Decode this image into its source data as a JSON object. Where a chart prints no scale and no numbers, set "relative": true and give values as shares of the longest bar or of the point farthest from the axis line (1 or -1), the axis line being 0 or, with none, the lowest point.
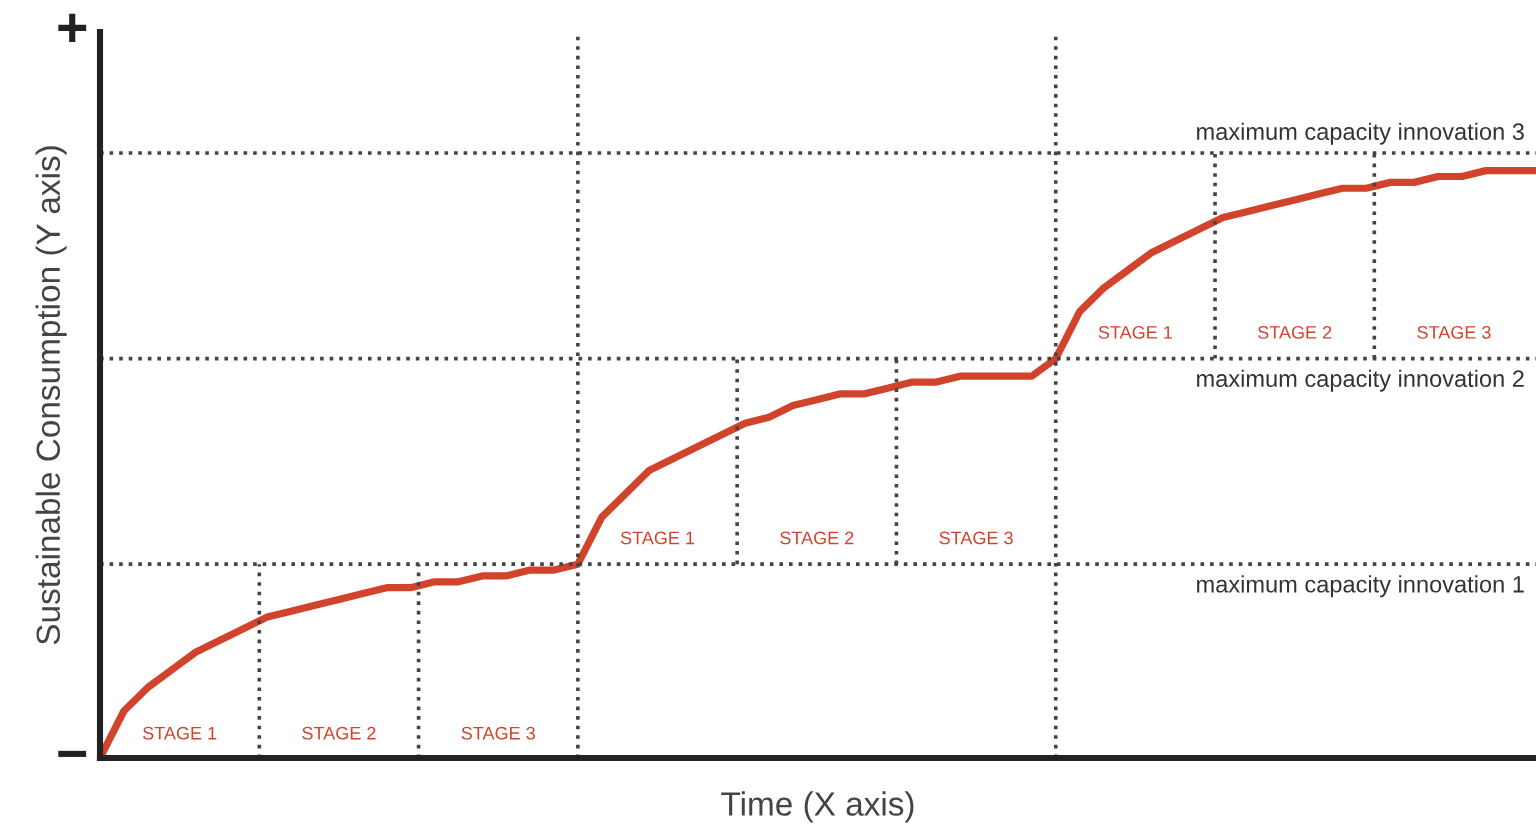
{
  "chart_data": {
    "type": "line",
    "relative": true,
    "xlabel": "Time (X axis)",
    "ylabel": "Sustainable Consumption (Y axis)",
    "categories": [
      null,
      null,
      null,
      null,
      null,
      null,
      null,
      null,
      null,
      null,
      null,
      null,
      null,
      null,
      null,
      null,
      null,
      null,
      null,
      null,
      null,
      null,
      null,
      null,
      null,
      null,
      null,
      null,
      null,
      null,
      null,
      null,
      null,
      null,
      null,
      null,
      null,
      null,
      null,
      null,
      null,
      null,
      null,
      null,
      null,
      null,
      null,
      null,
      null,
      null,
      null,
      null,
      null,
      null,
      null,
      null,
      null,
      null,
      null,
      null,
      null
    ],
    "series": [
      {
        "color": "#d2432b",
        "values": [
          0,
          0.08,
          0.12,
          0.15,
          0.18,
          0.2,
          0.22,
          0.24,
          0.25,
          0.26,
          0.27,
          0.28,
          0.29,
          0.29,
          0.3,
          0.3,
          0.31,
          0.31,
          0.32,
          0.32,
          0.33,
          0.41,
          0.45,
          0.49,
          0.51,
          0.53,
          0.55,
          0.57,
          0.58,
          0.6,
          0.61,
          0.62,
          0.62,
          0.63,
          0.64,
          0.64,
          0.65,
          0.65,
          0.65,
          0.65,
          0.68,
          0.76,
          0.8,
          0.83,
          0.86,
          0.88,
          0.9,
          0.92,
          0.93,
          0.94,
          0.95,
          0.96,
          0.97,
          0.97,
          0.98,
          0.98,
          0.99,
          0.99,
          1.0,
          1.0,
          1.0
        ]
      }
    ],
    "annotations": [
      "+",
      "−",
      "STAGE 1",
      "STAGE 2",
      "STAGE 3",
      "STAGE 1",
      "STAGE 2",
      "STAGE 3",
      "STAGE 1",
      "STAGE 2",
      "STAGE 3"
    ],
    "ref_lines": [
      {
        "axis": "y",
        "value": 0.33,
        "label": "maximum capacity innovation 1",
        "line_style": "dotted"
      },
      {
        "axis": "y",
        "value": 0.68,
        "label": "maximum capacity innovation 2",
        "line_style": "dotted"
      },
      {
        "axis": "y",
        "value": 1.03,
        "label": "maximum capacity innovation 3",
        "line_style": "dotted"
      }
    ]
  }
}
